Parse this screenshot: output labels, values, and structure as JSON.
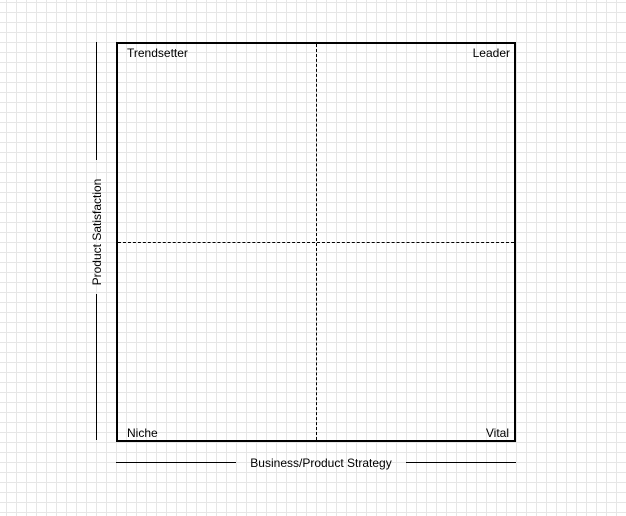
{
  "quadrants": {
    "top_left": "Trendsetter",
    "top_right": "Leader",
    "bottom_left": "Niche",
    "bottom_right": "Vital"
  },
  "axes": {
    "x_label": "Business/Product Strategy",
    "y_label": "Product Satisfaction"
  },
  "colors": {
    "background": "#ffffff",
    "grid": "#e6e6e6",
    "lines": "#000000"
  }
}
